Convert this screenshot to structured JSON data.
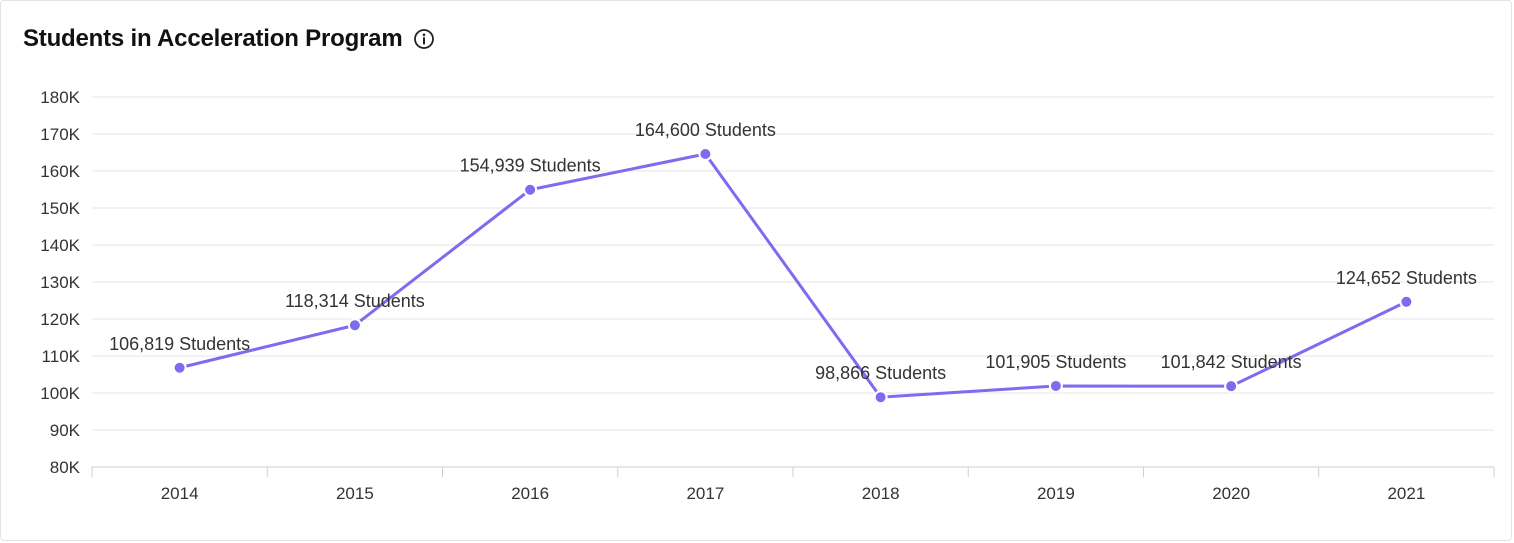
{
  "header": {
    "title": "Students in Acceleration Program",
    "info_icon": "info-icon"
  },
  "colors": {
    "series": "#7b6cf0",
    "grid": "#e6e6e6",
    "axis": "#cfcfcf"
  },
  "chart_data": {
    "type": "line",
    "title": "Students in Acceleration Program",
    "xlabel": "",
    "ylabel": "",
    "categories": [
      "2014",
      "2015",
      "2016",
      "2017",
      "2018",
      "2019",
      "2020",
      "2021"
    ],
    "series": [
      {
        "values": [
          106819,
          118314,
          154939,
          164600,
          98866,
          101905,
          101842,
          124652
        ],
        "labels": [
          "106,819 Students",
          "118,314 Students",
          "154,939 Students",
          "164,600 Students",
          "98,866 Students",
          "101,905 Students",
          "101,842 Students",
          "124,652 Students"
        ]
      }
    ],
    "ylim": [
      80000,
      180000
    ],
    "yticks": [
      80000,
      90000,
      100000,
      110000,
      120000,
      130000,
      140000,
      150000,
      160000,
      170000,
      180000
    ],
    "ytick_labels": [
      "80K",
      "90K",
      "100K",
      "110K",
      "120K",
      "130K",
      "140K",
      "150K",
      "160K",
      "170K",
      "180K"
    ],
    "grid": true,
    "legend": "none"
  }
}
